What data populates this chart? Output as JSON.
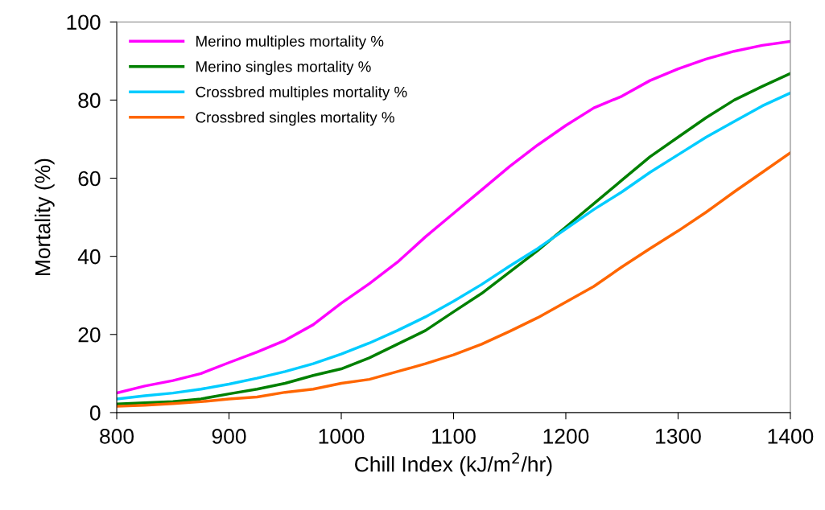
{
  "chart_data": {
    "type": "line",
    "xlabel": "Chill Index (kJ/m$^{2}$/hr)",
    "ylabel": "Mortality (%)",
    "x": [
      800,
      825,
      850,
      875,
      900,
      925,
      950,
      975,
      1000,
      1025,
      1050,
      1075,
      1100,
      1125,
      1150,
      1175,
      1200,
      1225,
      1250,
      1275,
      1300,
      1325,
      1350,
      1375,
      1400
    ],
    "series": [
      {
        "name": "Merino multiples mortality %",
        "color": "#ff00ff",
        "values": [
          5,
          6.8,
          8.2,
          10,
          12.8,
          15.5,
          18.5,
          22.5,
          28,
          33,
          38.5,
          45,
          51,
          57,
          63,
          68.5,
          73.5,
          78,
          81,
          85,
          88,
          90.5,
          92.5,
          94,
          95
        ]
      },
      {
        "name": "Merino singles mortality %",
        "color": "#008000",
        "values": [
          2.2,
          2.5,
          2.8,
          3.5,
          4.8,
          6,
          7.5,
          9.5,
          11.2,
          14,
          17.5,
          21,
          25.8,
          30.5,
          36,
          41.5,
          47.5,
          53.5,
          59.5,
          65.5,
          70.5,
          75.5,
          80,
          83.5,
          86.8
        ]
      },
      {
        "name": "Crossbred multiples mortality %",
        "color": "#00ccff",
        "values": [
          3.5,
          4.3,
          5,
          6,
          7.3,
          8.8,
          10.5,
          12.5,
          15,
          17.8,
          21,
          24.5,
          28.5,
          32.8,
          37.5,
          42,
          47,
          52,
          56.5,
          61.5,
          66,
          70.5,
          74.5,
          78.5,
          81.8
        ]
      },
      {
        "name": "Crossbred singles mortality %",
        "color": "#ff6600",
        "values": [
          1.6,
          1.9,
          2.3,
          2.8,
          3.5,
          4,
          5.2,
          6,
          7.5,
          8.5,
          10.5,
          12.5,
          14.8,
          17.5,
          20.8,
          24.3,
          28.3,
          32.3,
          37.3,
          42,
          46.5,
          51.3,
          56.5,
          61.5,
          66.5
        ]
      }
    ],
    "xlim": [
      800,
      1400
    ],
    "xticks": [
      800,
      900,
      1000,
      1100,
      1200,
      1300,
      1400
    ],
    "ylim": [
      0,
      100
    ],
    "yticks": [
      0,
      20,
      40,
      60,
      80,
      100
    ],
    "grid": false,
    "legend": "top left",
    "marker": "none",
    "line_style": "solid"
  }
}
